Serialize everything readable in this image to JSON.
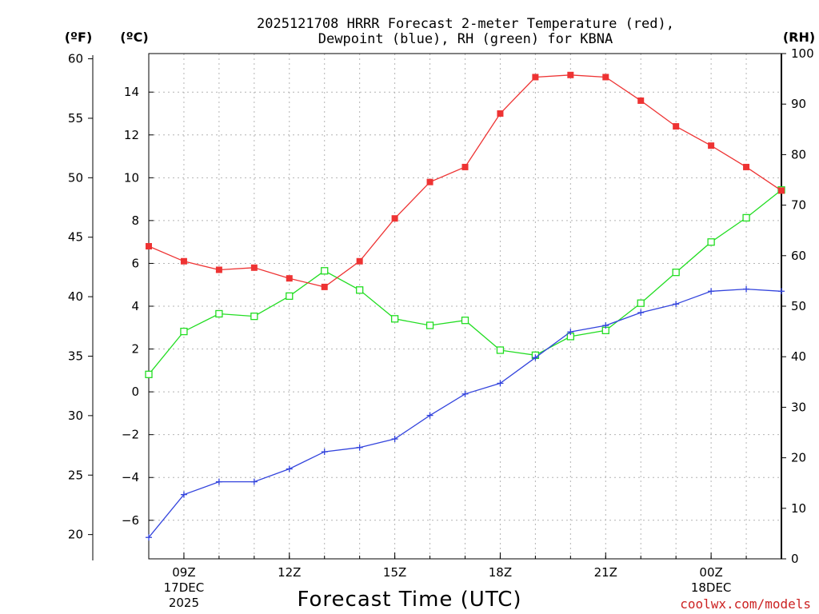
{
  "title_line1": "2025121708 HRRR Forecast 2-meter Temperature (red),",
  "title_line2": "Dewpoint (blue), RH (green) for KBNA",
  "units": {
    "fahrenheit": "(ºF)",
    "celsius": "(ºC)",
    "rh": "(RH)"
  },
  "xlabel": "Forecast Time (UTC)",
  "credit": "coolwx.com/models",
  "colors": {
    "temperature": "#ee3333",
    "dewpoint": "#3344dd",
    "rh": "#22dd22"
  },
  "chart_data": {
    "type": "line",
    "title": "2025121708 HRRR Forecast 2-meter Temperature (red), Dewpoint (blue), RH (green) for KBNA",
    "xlabel": "Forecast Time (UTC)",
    "x_hours": [
      8,
      9,
      10,
      11,
      12,
      13,
      14,
      15,
      16,
      17,
      18,
      19,
      20,
      21,
      22,
      23,
      24,
      25,
      26
    ],
    "xlim": [
      8,
      26
    ],
    "x_ticks": [
      {
        "hour": 9,
        "label": "09Z",
        "sub1": "17DEC",
        "sub2": "2025"
      },
      {
        "hour": 12,
        "label": "12Z",
        "sub1": "",
        "sub2": ""
      },
      {
        "hour": 15,
        "label": "15Z",
        "sub1": "",
        "sub2": ""
      },
      {
        "hour": 18,
        "label": "18Z",
        "sub1": "",
        "sub2": ""
      },
      {
        "hour": 21,
        "label": "21Z",
        "sub1": "",
        "sub2": ""
      },
      {
        "hour": 24,
        "label": "00Z",
        "sub1": "18DEC",
        "sub2": ""
      }
    ],
    "y_celsius": {
      "lim": [
        -7.8,
        15.8
      ],
      "ticks": [
        "-6",
        "-4",
        "-2",
        "0",
        "2",
        "4",
        "6",
        "8",
        "10",
        "12",
        "14"
      ]
    },
    "y_fahrenheit": {
      "ticks": [
        "20",
        "25",
        "30",
        "35",
        "40",
        "45",
        "50",
        "55",
        "60"
      ]
    },
    "y_rh": {
      "lim": [
        0,
        100
      ],
      "ticks": [
        "0",
        "10",
        "20",
        "30",
        "40",
        "50",
        "60",
        "70",
        "80",
        "90",
        "100"
      ]
    },
    "series": [
      {
        "name": "Temperature",
        "units": "°C",
        "axis": "celsius",
        "marker": "filled-square",
        "values": [
          6.8,
          6.1,
          5.7,
          5.8,
          5.3,
          4.9,
          6.1,
          8.1,
          9.8,
          10.5,
          13.0,
          14.7,
          14.8,
          14.7,
          13.6,
          12.4,
          11.5,
          10.5,
          9.4
        ]
      },
      {
        "name": "Dewpoint",
        "units": "°C",
        "axis": "celsius",
        "marker": "plus",
        "values": [
          -6.8,
          -4.8,
          -4.2,
          -4.2,
          -3.6,
          -2.8,
          -2.6,
          -2.2,
          -1.1,
          -0.1,
          0.4,
          1.6,
          2.8,
          3.1,
          3.7,
          4.1,
          4.7,
          4.8,
          4.7
        ]
      },
      {
        "name": "Relative Humidity",
        "units": "%",
        "axis": "rh",
        "marker": "open-square",
        "values": [
          36.5,
          45,
          48.5,
          48,
          52,
          57,
          53.2,
          47.5,
          46.2,
          47.2,
          41.3,
          40.3,
          44,
          45.2,
          50.6,
          56.7,
          62.7,
          67.5,
          73
        ]
      }
    ],
    "grid": true
  }
}
